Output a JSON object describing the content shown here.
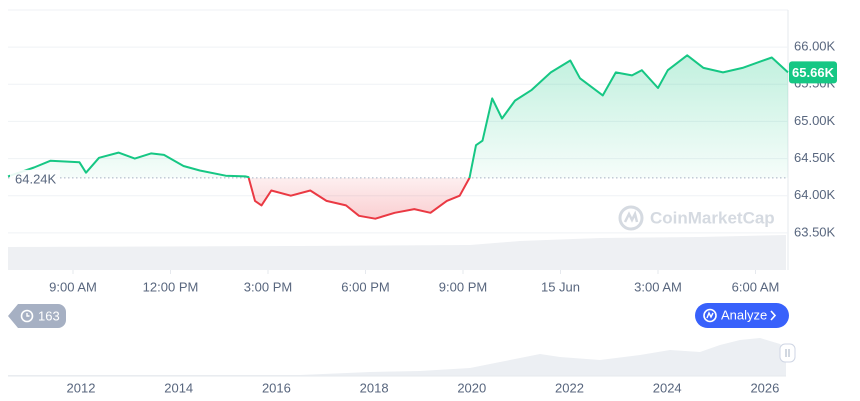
{
  "chart_data": {
    "type": "line",
    "x": [
      7.0,
      7.8,
      8.3,
      9.2,
      9.4,
      9.8,
      10.4,
      10.9,
      11.4,
      11.8,
      12.4,
      12.9,
      13.7,
      14.3,
      14.4,
      14.6,
      14.8,
      15.1,
      15.7,
      16.3,
      16.8,
      17.4,
      17.8,
      18.3,
      18.9,
      19.5,
      20.0,
      20.5,
      20.9,
      21.2,
      21.4,
      21.6,
      21.9,
      22.2,
      22.6,
      23.1,
      23.7,
      24.3,
      24.6,
      25.3,
      25.7,
      26.2,
      26.5,
      27.0,
      27.3,
      27.9,
      28.4,
      29.0,
      29.6,
      30.5,
      31.0
    ],
    "values": [
      64260,
      64380,
      64470,
      64450,
      64310,
      64510,
      64580,
      64500,
      64570,
      64550,
      64400,
      64340,
      64270,
      64260,
      64250,
      63930,
      63870,
      64070,
      64000,
      64070,
      63930,
      63870,
      63730,
      63690,
      63770,
      63820,
      63770,
      63930,
      64000,
      64240,
      64680,
      64740,
      65310,
      65040,
      65280,
      65420,
      65660,
      65820,
      65580,
      65350,
      65660,
      65620,
      65690,
      65450,
      65690,
      65890,
      65720,
      65660,
      65720,
      65860,
      65660
    ],
    "color_up": "#16c784",
    "color_down": "#ea3943",
    "baseline": {
      "value": 64240,
      "label": "64.24K"
    },
    "current_price": {
      "value": 65660,
      "label": "65.66K"
    },
    "xlim": [
      7,
      31
    ],
    "xticks": [
      {
        "value": 9,
        "label": "9:00 AM"
      },
      {
        "value": 12,
        "label": "12:00 PM"
      },
      {
        "value": 15,
        "label": "3:00 PM"
      },
      {
        "value": 18,
        "label": "6:00 PM"
      },
      {
        "value": 21,
        "label": "9:00 PM"
      },
      {
        "value": 24,
        "label": "15 Jun"
      },
      {
        "value": 27,
        "label": "3:00 AM"
      },
      {
        "value": 30,
        "label": "6:00 AM"
      }
    ],
    "ylim": [
      63000,
      66500
    ],
    "yticks": [
      {
        "value": 63500,
        "label": "63.50K"
      },
      {
        "value": 64000,
        "label": "64.00K"
      },
      {
        "value": 64500,
        "label": "64.50K"
      },
      {
        "value": 65000,
        "label": "65.00K"
      },
      {
        "value": 65500,
        "label": "65.50K"
      },
      {
        "value": 66000,
        "label": "66.00K"
      }
    ],
    "grid": true
  },
  "navigator": {
    "labels": [
      "2012",
      "2014",
      "2016",
      "2018",
      "2020",
      "2022",
      "2024",
      "2026"
    ]
  },
  "ui": {
    "history_count": "163",
    "analyze_button": "Analyze",
    "watermark": "CoinMarketCap"
  }
}
